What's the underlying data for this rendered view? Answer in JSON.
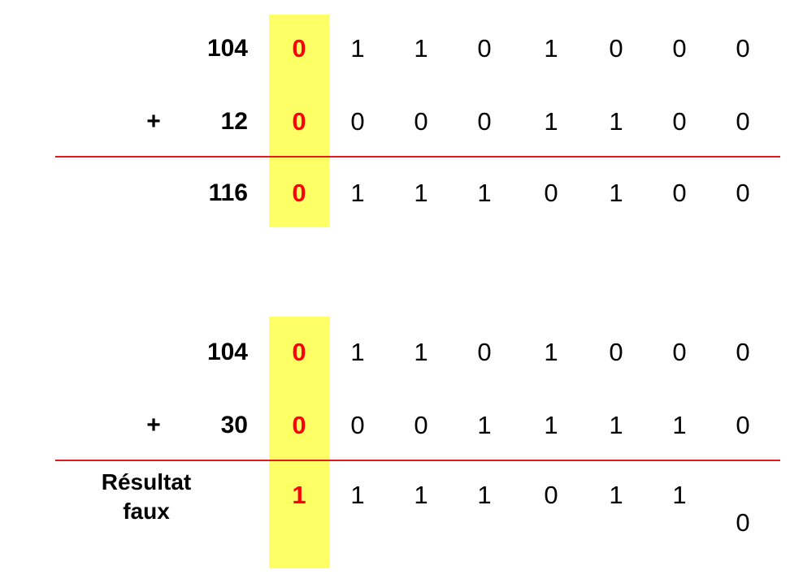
{
  "tables": [
    {
      "rows": [
        {
          "sign": "",
          "label": "104",
          "bits": [
            "0",
            "1",
            "1",
            "0",
            "1",
            "0",
            "0",
            "0"
          ]
        },
        {
          "sign": "+",
          "label": "12",
          "bits": [
            "0",
            "0",
            "0",
            "0",
            "1",
            "1",
            "0",
            "0"
          ]
        },
        {
          "sign": "",
          "label": "116",
          "bits": [
            "0",
            "1",
            "1",
            "1",
            "0",
            "1",
            "0",
            "0"
          ]
        }
      ]
    },
    {
      "rows": [
        {
          "sign": "",
          "label": "104",
          "bits": [
            "0",
            "1",
            "1",
            "0",
            "1",
            "0",
            "0",
            "0"
          ]
        },
        {
          "sign": "+",
          "label": "30",
          "bits": [
            "0",
            "0",
            "0",
            "1",
            "1",
            "1",
            "1",
            "0"
          ]
        },
        {
          "sign": "",
          "label_line1": "Résultat",
          "label_line2": "faux",
          "bits": [
            "1",
            "1",
            "1",
            "1",
            "0",
            "1",
            "1",
            "0"
          ]
        }
      ]
    }
  ],
  "colors": {
    "highlight": "#ffff66",
    "sign_bit": "#ff0000",
    "rule": "#e01b1b"
  }
}
